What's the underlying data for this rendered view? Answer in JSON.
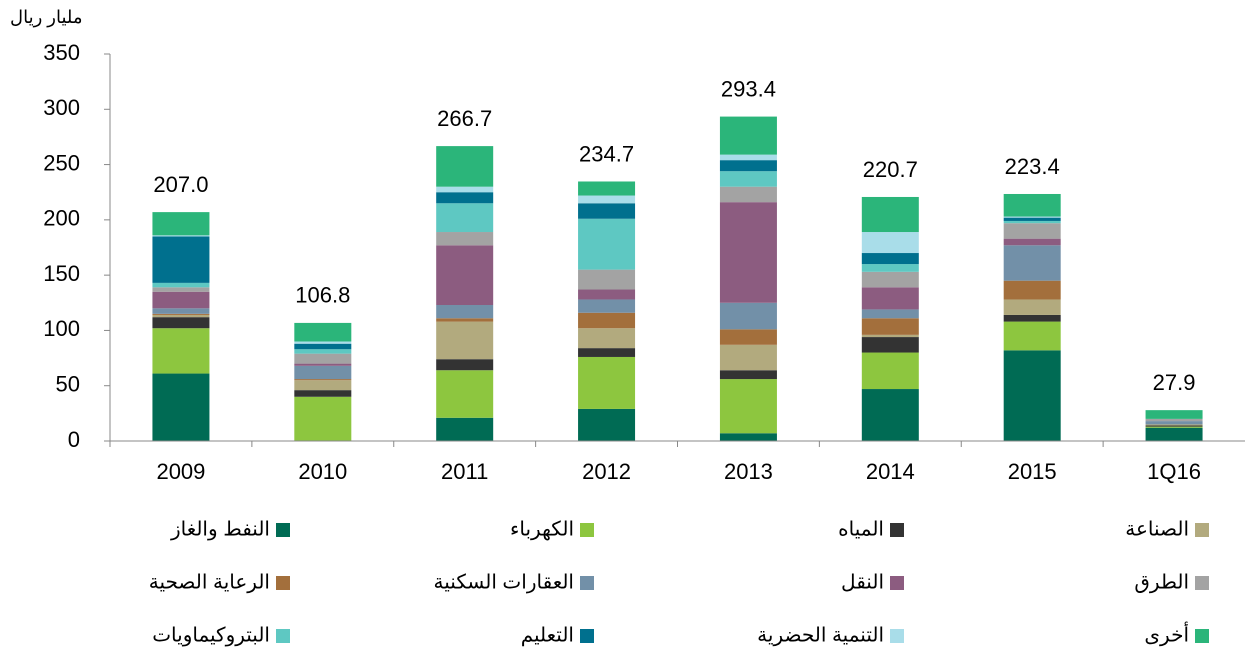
{
  "chart_data": {
    "type": "stacked_bar",
    "y_label": "مليار ريال",
    "categories": [
      "2009",
      "2010",
      "2011",
      "2012",
      "2013",
      "2014",
      "2015",
      "1Q16"
    ],
    "ylim": [
      0,
      350
    ],
    "yticks": [
      0,
      50,
      100,
      150,
      200,
      250,
      300,
      350
    ],
    "series": [
      {
        "name": "النفط والغاز",
        "color": "#006b54",
        "values": [
          61,
          0,
          21,
          29,
          7,
          47,
          82,
          12
        ]
      },
      {
        "name": "الكهرباء",
        "color": "#8dc63f",
        "values": [
          41,
          40,
          43,
          47,
          49,
          33,
          26,
          1
        ]
      },
      {
        "name": "المياه",
        "color": "#333333",
        "values": [
          10,
          6,
          10,
          8,
          8,
          14,
          6,
          1
        ]
      },
      {
        "name": "الصناعة",
        "color": "#b2aa7e",
        "values": [
          2,
          9,
          34,
          18,
          23,
          2,
          14,
          1
        ]
      },
      {
        "name": "الرعاية الصحية",
        "color": "#a36f3c",
        "values": [
          1,
          1,
          3,
          14,
          14,
          15,
          17,
          0
        ]
      },
      {
        "name": "العقارات السكنية",
        "color": "#7290a8",
        "values": [
          5,
          12,
          12,
          12,
          24,
          8,
          32,
          3
        ]
      },
      {
        "name": "النقل",
        "color": "#8c5c80",
        "values": [
          15,
          2,
          54,
          9,
          91,
          20,
          6,
          0
        ]
      },
      {
        "name": "الطرق",
        "color": "#a3a3a3",
        "values": [
          4,
          9,
          12,
          18,
          14,
          14,
          14,
          2
        ]
      },
      {
        "name": "البتروكيماويات",
        "color": "#5ec8c2",
        "values": [
          4,
          4,
          26,
          46,
          14,
          7,
          2,
          0
        ]
      },
      {
        "name": "التعليم",
        "color": "#00708e",
        "values": [
          42,
          5,
          10,
          14,
          10,
          10,
          3,
          0
        ]
      },
      {
        "name": "التنمية الحضرية",
        "color": "#a9dde9",
        "values": [
          1,
          2,
          5,
          7,
          5,
          19,
          1,
          0
        ]
      },
      {
        "name": "أخرى",
        "color": "#2bb57a",
        "values": [
          21,
          16.8,
          36.7,
          12.7,
          34.4,
          31.7,
          20.4,
          7.9
        ]
      }
    ],
    "totals": {
      "values": [
        207,
        106.8,
        266.7,
        234.7,
        293.4,
        220.7,
        223.4,
        27.9
      ],
      "value_labels": [
        "207.0",
        "106.8",
        "266.7",
        "234.7",
        "293.4",
        "220.7",
        "223.4",
        "27.9"
      ]
    }
  }
}
